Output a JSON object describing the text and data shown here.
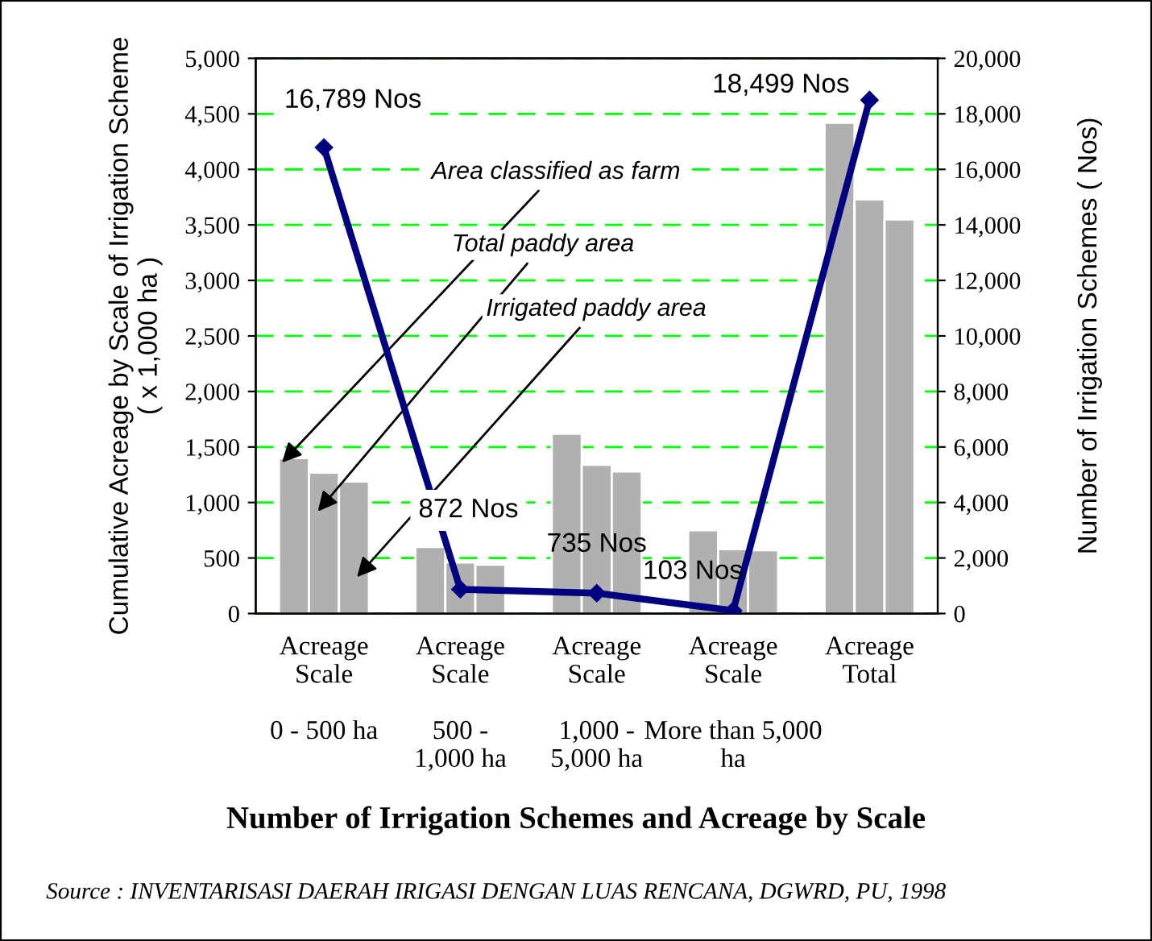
{
  "chart_data": {
    "type": "bar",
    "title": "Number of Irrigation Schemes and Acreage by Scale",
    "ylabel": "Cumulative Acreage by Scale of Irrigation Scheme\n( x 1,000 ha )",
    "y2label": "Number of Irrigation Schemes ( Nos)",
    "categories": [
      "Acreage\nScale\n\n0 - 500 ha",
      "Acreage\nScale\n\n500 -\n1,000 ha",
      "Acreage\nScale\n\n1,000 -\n5,000 ha",
      "Acreage\nScale\n\nMore than 5,000\nha",
      "Acreage\nTotal"
    ],
    "series": [
      {
        "name": "Area classified as farm",
        "color": "#b0b0b0",
        "values": [
          1400,
          600,
          1620,
          750,
          4420
        ]
      },
      {
        "name": "Total paddy area",
        "color": "#b0b0b0",
        "values": [
          1270,
          460,
          1340,
          580,
          3730
        ]
      },
      {
        "name": "Irrigated paddy area",
        "color": "#b0b0b0",
        "values": [
          1190,
          440,
          1280,
          570,
          3550
        ]
      },
      {
        "type": "line",
        "axis": "y2",
        "color": "#000080",
        "marker": "diamond",
        "values": [
          16789,
          872,
          735,
          103,
          18499
        ],
        "value_labels": [
          "16,789 Nos",
          "872 Nos",
          "735 Nos",
          "103 Nos",
          "18,499 Nos"
        ]
      }
    ],
    "ylim": [
      0,
      5000
    ],
    "yticks": [
      0,
      {
        "value": 500,
        "label": "500"
      },
      {
        "value": 1000,
        "label": "1,000"
      },
      {
        "value": 1500,
        "label": "1,500"
      },
      {
        "value": 2000,
        "label": "2,000"
      },
      {
        "value": 2500,
        "label": "2,500"
      },
      {
        "value": 3000,
        "label": "3,000"
      },
      {
        "value": 3500,
        "label": "3,500"
      },
      {
        "value": 4000,
        "label": "4,000"
      },
      {
        "value": 4500,
        "label": "4,500"
      },
      {
        "value": 5000,
        "label": "5,000"
      }
    ],
    "y2lim": [
      0,
      20000
    ],
    "y2ticks": [
      0,
      {
        "value": 2000,
        "label": "2,000"
      },
      {
        "value": 4000,
        "label": "4,000"
      },
      {
        "value": 6000,
        "label": "6,000"
      },
      {
        "value": 8000,
        "label": "8,000"
      },
      {
        "value": 10000,
        "label": "10,000"
      },
      {
        "value": 12000,
        "label": "12,000"
      },
      {
        "value": 14000,
        "label": "14,000"
      },
      {
        "value": 16000,
        "label": "16,000"
      },
      {
        "value": 18000,
        "label": "18,000"
      },
      {
        "value": 20000,
        "label": "20,000"
      }
    ],
    "grid": "y",
    "legend": false,
    "annotations": [
      "Source : INVENTARISASI DAERAH IRIGASI DENGAN LUAS RENCANA, DGWRD, PU, 1998"
    ]
  }
}
